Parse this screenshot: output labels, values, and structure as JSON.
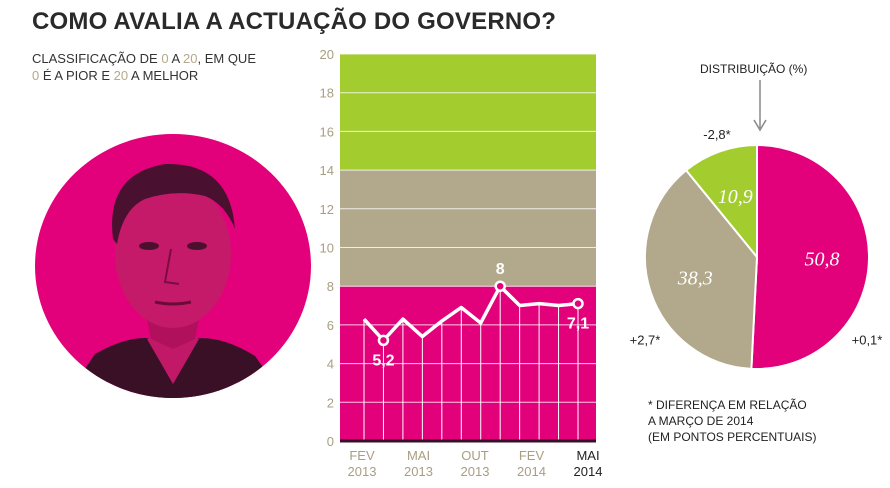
{
  "header": {
    "title": "COMO AVALIA A ACTUAÇÃO DO GOVERNO?",
    "subtitle_parts": [
      "CLASSIFICAÇÃO DE ",
      "0",
      " A ",
      "20",
      ", EM QUE",
      "0",
      " É A PIOR E ",
      "20",
      " A MELHOR"
    ]
  },
  "colors": {
    "magenta": "#e3007b",
    "green": "#a3cc2f",
    "tan": "#b2a88c",
    "grid": "#ffffff",
    "tick_label": "#a89e82"
  },
  "chart_data": [
    {
      "type": "line",
      "ylim": [
        0,
        20
      ],
      "yticks": [
        "0",
        "2",
        "4",
        "6",
        "8",
        "10",
        "12",
        "14",
        "16",
        "18",
        "20"
      ],
      "bands": [
        {
          "from": 0,
          "to": 8,
          "color": "#e3007b"
        },
        {
          "from": 8,
          "to": 14,
          "color": "#b2a88c"
        },
        {
          "from": 14,
          "to": 20,
          "color": "#a3cc2f"
        }
      ],
      "x_tick_labels": [
        {
          "line1": "FEV",
          "line2": "2013"
        },
        {
          "line1": "MAI",
          "line2": "2013"
        },
        {
          "line1": "OUT",
          "line2": "2013"
        },
        {
          "line1": "FEV",
          "line2": "2014"
        },
        {
          "line1": "MAI",
          "line2": "2014"
        }
      ],
      "series": [
        {
          "values": [
            6.3,
            5.2,
            6.3,
            5.4,
            6.2,
            6.9,
            6.1,
            8.0,
            7.0,
            7.1,
            7.0,
            7.1
          ]
        }
      ],
      "annotations": [
        {
          "index": 1,
          "label": "5,2"
        },
        {
          "index": 7,
          "label": "8"
        },
        {
          "index": 11,
          "label": "7,1"
        }
      ]
    },
    {
      "type": "pie",
      "title": "DISTRIBUIÇÃO (%)",
      "slices": [
        {
          "value": 50.8,
          "label": "50,8",
          "change": "+0,1*",
          "color": "#e3007b"
        },
        {
          "value": 38.3,
          "label": "38,3",
          "change": "+2,7*",
          "color": "#b2a88c"
        },
        {
          "value": 10.9,
          "label": "10,9",
          "change": "-2,8*",
          "color": "#a3cc2f"
        }
      ]
    }
  ],
  "footnote": [
    "* DIFERENÇA EM RELAÇÃO",
    "A MARÇO DE 2014",
    "(EM PONTOS PERCENTUAIS)"
  ]
}
